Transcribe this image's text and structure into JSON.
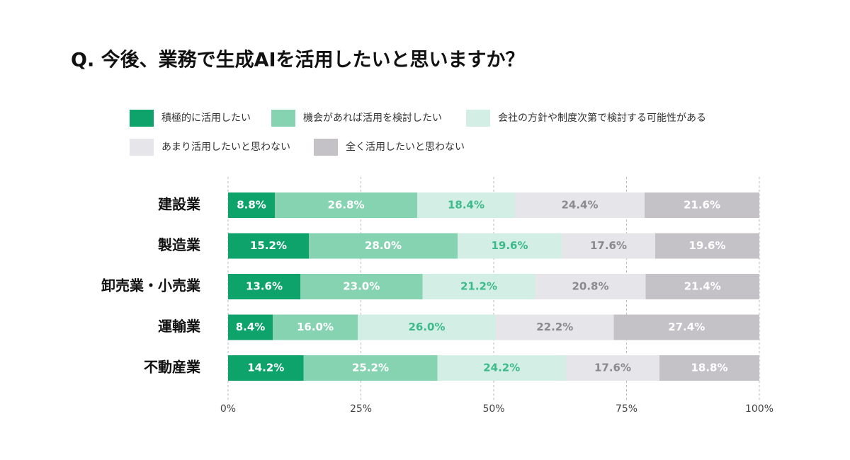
{
  "chart_data": {
    "type": "stacked-bar",
    "orientation": "horizontal",
    "title": "Q. 今後、業務で生成AIを活用したいと思いますか？",
    "categories": [
      "建設業",
      "製造業",
      "卸売業・小売業",
      "運輸業",
      "不動産業"
    ],
    "series": [
      {
        "name": "積極的に活用したい",
        "color": "#0ea36b",
        "label_color": "#ffffff",
        "values": [
          8.8,
          15.2,
          13.6,
          8.4,
          14.2
        ],
        "value_labels": [
          "8.8%",
          "15.2%",
          "13.6%",
          "8.4%",
          "14.2%"
        ]
      },
      {
        "name": "機会があれば活用を検討したい",
        "color": "#86d3b2",
        "label_color": "#ffffff",
        "values": [
          26.8,
          28,
          23,
          16,
          25.2
        ],
        "value_labels": [
          "26.8%",
          "28.0%",
          "23.0%",
          "16.0%",
          "25.2%"
        ]
      },
      {
        "name": "会社の方針や制度次第で検討する可能性がある",
        "color": "#d3efe5",
        "label_color": "#3dba8a",
        "values": [
          18.4,
          19.6,
          21.2,
          26,
          24.2
        ],
        "value_labels": [
          "18.4%",
          "19.6%",
          "21.2%",
          "26.0%",
          "24.2%"
        ]
      },
      {
        "name": "あまり活用したいと思わない",
        "color": "#e6e6ea",
        "label_color": "#8a8a8e",
        "values": [
          24.4,
          17.6,
          20.8,
          22.2,
          17.6
        ],
        "value_labels": [
          "24.4%",
          "17.6%",
          "20.8%",
          "22.2%",
          "17.6%"
        ]
      },
      {
        "name": "全く活用したいと思わない",
        "color": "#c4c2c7",
        "label_color": "#ffffff",
        "values": [
          21.6,
          19.6,
          21.4,
          27.4,
          18.8
        ],
        "value_labels": [
          "21.6%",
          "19.6%",
          "21.4%",
          "27.4%",
          "18.8%"
        ]
      }
    ],
    "xlim": [
      0,
      100
    ],
    "xticks": [
      {
        "value": 0,
        "label": "0%"
      },
      {
        "value": 25,
        "label": "25%"
      },
      {
        "value": 50,
        "label": "50%"
      },
      {
        "value": 75,
        "label": "75%"
      },
      {
        "value": 100,
        "label": "100%"
      }
    ],
    "grid": true
  }
}
